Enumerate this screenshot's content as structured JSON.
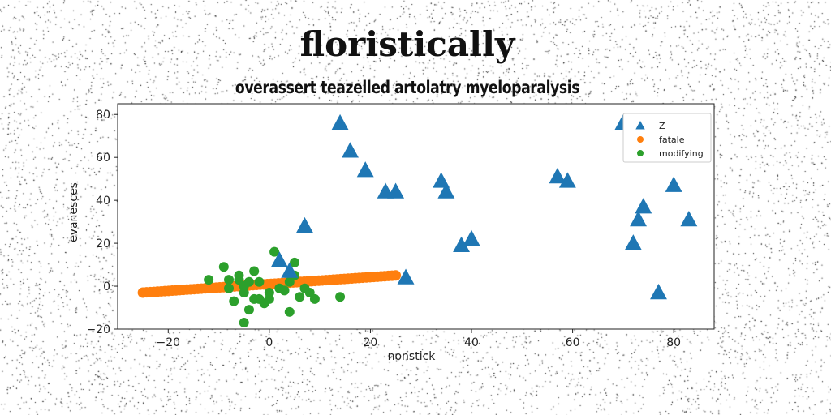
{
  "chart_data": {
    "type": "scatter",
    "title": "floristically",
    "subtitle": "overassert teazelled artolatry myeloparalysis",
    "xlabel": "nonstick",
    "ylabel": "evanesces",
    "xlim": [
      -30,
      88
    ],
    "ylim": [
      -20,
      85
    ],
    "xticks": [
      -20,
      0,
      20,
      40,
      60,
      80
    ],
    "yticks": [
      -20,
      0,
      20,
      40,
      60,
      80
    ],
    "grid": false,
    "legend_position": "top-right",
    "series": [
      {
        "name": "Z",
        "marker": "triangle",
        "color": "#1f77b4",
        "points": [
          [
            14,
            76
          ],
          [
            16,
            63
          ],
          [
            19,
            54
          ],
          [
            23,
            44
          ],
          [
            25,
            44
          ],
          [
            34,
            49
          ],
          [
            35,
            44
          ],
          [
            38,
            19
          ],
          [
            40,
            22
          ],
          [
            57,
            51
          ],
          [
            59,
            49
          ],
          [
            70,
            76
          ],
          [
            74,
            37
          ],
          [
            73,
            31
          ],
          [
            72,
            20
          ],
          [
            77,
            -3
          ],
          [
            80,
            47
          ],
          [
            83,
            31
          ],
          [
            7,
            28
          ],
          [
            2,
            12
          ],
          [
            4,
            7
          ],
          [
            27,
            4
          ]
        ]
      },
      {
        "name": "fatale",
        "marker": "circle",
        "color": "#ff7f0e",
        "line_from": [
          -25,
          -3
        ],
        "line_to": [
          25,
          5
        ],
        "count": 70
      },
      {
        "name": "modifying",
        "marker": "circle",
        "color": "#2ca02c",
        "points": [
          [
            -12,
            3
          ],
          [
            -9,
            9
          ],
          [
            -8,
            3
          ],
          [
            -7,
            -7
          ],
          [
            -6,
            5
          ],
          [
            -6,
            3
          ],
          [
            -5,
            0
          ],
          [
            -5,
            -3
          ],
          [
            -4,
            2
          ],
          [
            -4,
            -11
          ],
          [
            -5,
            -17
          ],
          [
            -3,
            7
          ],
          [
            -3,
            -6
          ],
          [
            -2,
            -6
          ],
          [
            -1,
            -8
          ],
          [
            0,
            -6
          ],
          [
            0,
            -3
          ],
          [
            1,
            16
          ],
          [
            2,
            -1
          ],
          [
            3,
            -2
          ],
          [
            4,
            -12
          ],
          [
            4,
            2
          ],
          [
            5,
            5
          ],
          [
            5,
            11
          ],
          [
            6,
            -5
          ],
          [
            7,
            -1
          ],
          [
            8,
            -3
          ],
          [
            9,
            -6
          ],
          [
            14,
            -5
          ],
          [
            -8,
            -1
          ],
          [
            -2,
            2
          ]
        ]
      }
    ]
  }
}
